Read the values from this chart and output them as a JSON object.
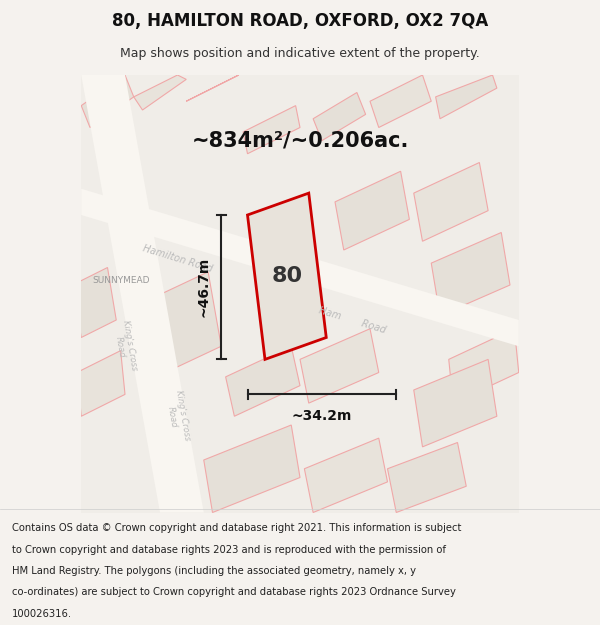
{
  "title": "80, HAMILTON ROAD, OXFORD, OX2 7QA",
  "subtitle": "Map shows position and indicative extent of the property.",
  "footer_lines": [
    "Contains OS data © Crown copyright and database right 2021. This information is subject",
    "to Crown copyright and database rights 2023 and is reproduced with the permission of",
    "HM Land Registry. The polygons (including the associated geometry, namely x, y",
    "co-ordinates) are subject to Crown copyright and database rights 2023 Ordnance Survey",
    "100026316."
  ],
  "area_label": "~834m²/~0.206ac.",
  "height_label": "~46.7m",
  "width_label": "~34.2m",
  "number_label": "80",
  "bg_color": "#f0ede8",
  "map_bg_color": "#f5f2ee",
  "property_color": "#e8e4de",
  "property_edge_color": "#cc0000",
  "dim_color": "#222222",
  "street_label_color": "#aaaaaa",
  "block_fill": "#e0dbd4",
  "block_edge": "#f0a0a0",
  "road_color": "#ffffff",
  "road_edge": "#e8b0b0"
}
